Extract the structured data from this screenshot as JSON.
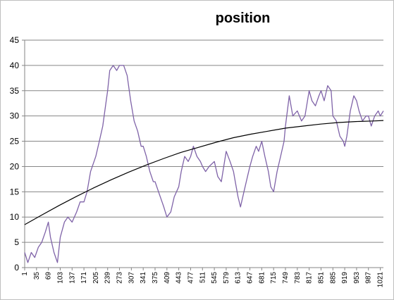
{
  "chart_data": {
    "type": "line",
    "title": "position",
    "xlabel": "",
    "ylabel": "",
    "ylim": [
      0,
      45
    ],
    "yticks": [
      0,
      5,
      10,
      15,
      20,
      25,
      30,
      35,
      40,
      45
    ],
    "x_tick_labels": [
      "1",
      "35",
      "69",
      "103",
      "137",
      "171",
      "205",
      "239",
      "273",
      "307",
      "341",
      "375",
      "409",
      "443",
      "477",
      "511",
      "545",
      "579",
      "613",
      "647",
      "681",
      "715",
      "749",
      "783",
      "817",
      "851",
      "885",
      "919",
      "953",
      "987",
      "1021"
    ],
    "x_range": [
      1,
      1030
    ],
    "grid": true,
    "legend": "none",
    "series": [
      {
        "color": "#7f63a8",
        "points": [
          [
            1,
            3
          ],
          [
            10,
            1
          ],
          [
            20,
            3
          ],
          [
            30,
            2
          ],
          [
            40,
            4
          ],
          [
            50,
            5
          ],
          [
            60,
            7
          ],
          [
            69,
            9
          ],
          [
            75,
            6
          ],
          [
            85,
            3
          ],
          [
            95,
            1
          ],
          [
            103,
            6
          ],
          [
            115,
            9
          ],
          [
            125,
            10
          ],
          [
            137,
            9
          ],
          [
            150,
            11
          ],
          [
            160,
            13
          ],
          [
            171,
            13
          ],
          [
            180,
            15
          ],
          [
            190,
            19
          ],
          [
            205,
            22
          ],
          [
            215,
            25
          ],
          [
            225,
            28
          ],
          [
            235,
            33
          ],
          [
            239,
            35
          ],
          [
            245,
            39
          ],
          [
            255,
            40
          ],
          [
            265,
            39
          ],
          [
            273,
            40
          ],
          [
            285,
            40
          ],
          [
            295,
            38
          ],
          [
            305,
            33
          ],
          [
            315,
            29
          ],
          [
            325,
            27
          ],
          [
            335,
            24
          ],
          [
            341,
            24
          ],
          [
            350,
            22
          ],
          [
            360,
            19
          ],
          [
            370,
            17
          ],
          [
            375,
            17
          ],
          [
            385,
            15
          ],
          [
            395,
            13
          ],
          [
            400,
            12
          ],
          [
            409,
            10
          ],
          [
            420,
            11
          ],
          [
            430,
            14
          ],
          [
            443,
            16
          ],
          [
            450,
            19
          ],
          [
            460,
            22
          ],
          [
            470,
            21
          ],
          [
            477,
            22
          ],
          [
            485,
            24
          ],
          [
            495,
            22
          ],
          [
            505,
            21
          ],
          [
            511,
            20
          ],
          [
            520,
            19
          ],
          [
            530,
            20
          ],
          [
            545,
            21
          ],
          [
            555,
            18
          ],
          [
            565,
            17
          ],
          [
            579,
            23
          ],
          [
            590,
            21
          ],
          [
            600,
            19
          ],
          [
            605,
            17
          ],
          [
            613,
            14
          ],
          [
            620,
            12
          ],
          [
            630,
            15
          ],
          [
            640,
            18
          ],
          [
            647,
            20
          ],
          [
            655,
            22
          ],
          [
            665,
            24
          ],
          [
            672,
            23
          ],
          [
            681,
            25
          ],
          [
            690,
            22
          ],
          [
            700,
            19
          ],
          [
            707,
            16
          ],
          [
            715,
            15
          ],
          [
            725,
            19
          ],
          [
            735,
            22
          ],
          [
            745,
            25
          ],
          [
            749,
            28
          ],
          [
            760,
            34
          ],
          [
            770,
            30
          ],
          [
            783,
            31
          ],
          [
            795,
            29
          ],
          [
            805,
            30
          ],
          [
            817,
            35
          ],
          [
            825,
            33
          ],
          [
            835,
            32
          ],
          [
            845,
            34
          ],
          [
            851,
            35
          ],
          [
            860,
            33
          ],
          [
            870,
            36
          ],
          [
            880,
            35
          ],
          [
            885,
            30
          ],
          [
            895,
            29
          ],
          [
            905,
            26
          ],
          [
            915,
            25
          ],
          [
            919,
            24
          ],
          [
            925,
            26
          ],
          [
            935,
            31
          ],
          [
            945,
            34
          ],
          [
            953,
            33
          ],
          [
            960,
            31
          ],
          [
            970,
            29
          ],
          [
            980,
            30
          ],
          [
            987,
            30
          ],
          [
            995,
            28
          ],
          [
            1005,
            30
          ],
          [
            1015,
            31
          ],
          [
            1021,
            30
          ],
          [
            1030,
            31
          ]
        ]
      },
      {
        "color": "#000000",
        "type": "trendline",
        "points": [
          [
            1,
            8.5
          ],
          [
            50,
            10.4
          ],
          [
            100,
            12.3
          ],
          [
            150,
            14.1
          ],
          [
            200,
            15.8
          ],
          [
            250,
            17.4
          ],
          [
            300,
            18.9
          ],
          [
            350,
            20.3
          ],
          [
            400,
            21.6
          ],
          [
            450,
            22.8
          ],
          [
            500,
            23.8
          ],
          [
            550,
            24.8
          ],
          [
            600,
            25.7
          ],
          [
            650,
            26.4
          ],
          [
            700,
            27.0
          ],
          [
            750,
            27.6
          ],
          [
            800,
            28.0
          ],
          [
            850,
            28.4
          ],
          [
            900,
            28.7
          ],
          [
            950,
            28.9
          ],
          [
            1000,
            29.0
          ],
          [
            1030,
            29.1
          ]
        ]
      }
    ]
  }
}
